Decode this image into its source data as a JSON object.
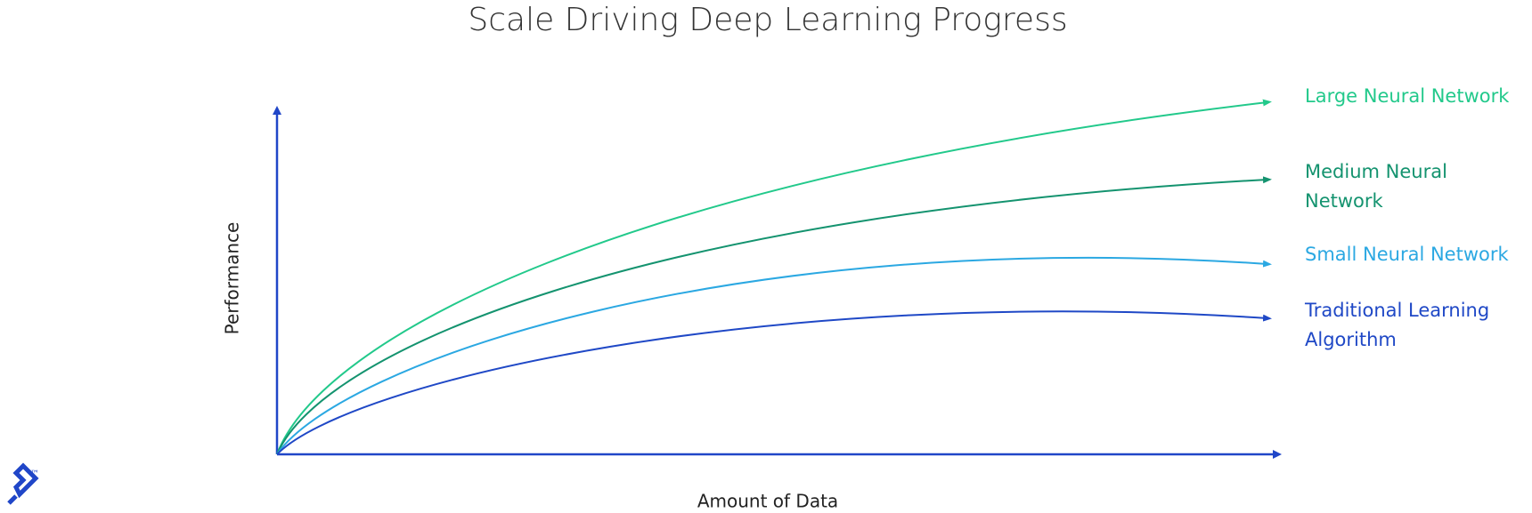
{
  "chart_data": {
    "type": "line",
    "title": "Scale Driving Deep Learning Progress",
    "x_label": "Amount of Data",
    "y_label": "Performance",
    "series": [
      {
        "name": "Large Neural Network",
        "color": "#22c98b"
      },
      {
        "name": "Medium Neural Network",
        "color": "#14936f"
      },
      {
        "name": "Small Neural Network",
        "color": "#2ba8e2"
      },
      {
        "name": "Traditional Learning Algorithm",
        "color": "#1f48c6"
      }
    ]
  }
}
